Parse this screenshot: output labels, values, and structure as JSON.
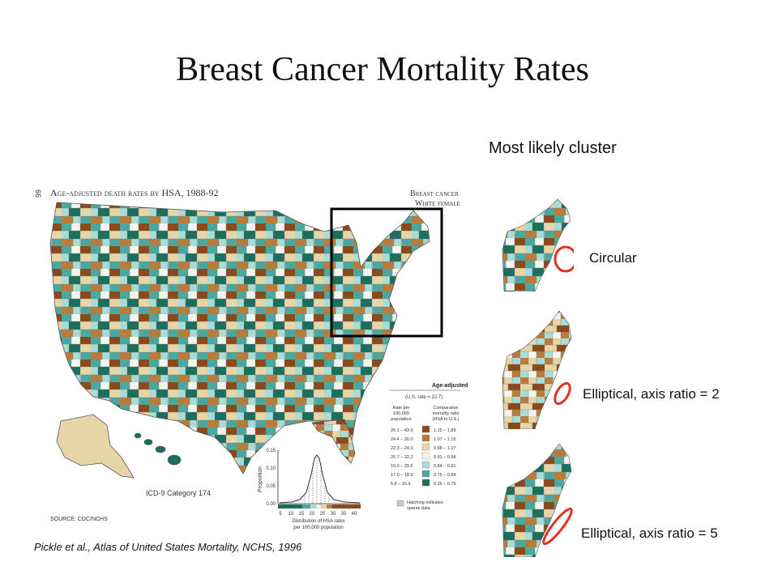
{
  "slide": {
    "title": "Breast Cancer Mortality Rates",
    "citation": "Pickle et al., Atlas of United States Mortality, NCHS, 1996"
  },
  "map": {
    "page_number": "66",
    "header": "Age-adjusted death rates by HSA, 1988-92",
    "cause_line1": "Breast cancer",
    "cause_line2": "White female",
    "category": "ICD-9 Category 174",
    "source": "SOURCE: CDC/NCHS",
    "colors": {
      "brown_dark": "#8a4a1c",
      "brown_mid": "#b97c3a",
      "tan": "#e6d5a6",
      "white": "#f4f4ef",
      "cyan_light": "#a9dcd6",
      "teal_mid": "#4aa8a0",
      "teal_dark": "#1b6f5c",
      "sparse": "#c8c8c8"
    }
  },
  "legend": {
    "title": "Age-adjusted",
    "us_rate": "(U.S. rate = 22.7)",
    "col1_header": [
      "Rate per",
      "100,000",
      "population"
    ],
    "col2_header": [
      "Comparative",
      "mortality ratio",
      "(HSA to U.S.)"
    ],
    "rows": [
      {
        "rate": "26.1 – 43.0",
        "ratio": "1.15 – 1.89",
        "color": "#8a4a1c"
      },
      {
        "rate": "24.4 – 26.0",
        "ratio": "1.07 – 1.15",
        "color": "#b97c3a"
      },
      {
        "rate": "22.3 – 24.3",
        "ratio": "0.98 – 1.07",
        "color": "#e6d5a6"
      },
      {
        "rate": "20.7 – 22.2",
        "ratio": "0.91 – 0.98",
        "color": "#f4f4ef"
      },
      {
        "rate": "19.0 – 20.6",
        "ratio": "0.84 – 0.91",
        "color": "#a9dcd6"
      },
      {
        "rate": "17.0 – 18.9",
        "ratio": "0.75 – 0.84",
        "color": "#4aa8a0"
      },
      {
        "rate": "5.8 – 16.9",
        "ratio": "0.26 – 0.75",
        "color": "#1b6f5c"
      }
    ],
    "hatching_line1": "Hatching indicates",
    "hatching_line2": "sparse data"
  },
  "distribution": {
    "ylabel": "Proportion",
    "xlabel_line1": "Distribution of HSA rates",
    "xlabel_line2": "per 100,000 population",
    "y_ticks": [
      "0.00",
      "0.05",
      "0.10",
      "0.15"
    ],
    "x_ticks": [
      "5",
      "10",
      "15",
      "20",
      "25",
      "30",
      "35",
      "40"
    ]
  },
  "clusters": {
    "heading": "Most likely cluster",
    "panels": [
      {
        "label": "Circular",
        "shape": "circle"
      },
      {
        "label": "Elliptical, axis ratio = 2",
        "shape": "ellipse-2"
      },
      {
        "label": "Elliptical, axis ratio = 5",
        "shape": "ellipse-5"
      }
    ],
    "ring_color": "#e3321f"
  }
}
